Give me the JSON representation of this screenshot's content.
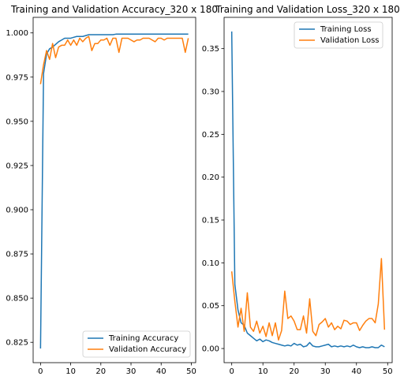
{
  "chart_data": [
    {
      "type": "line",
      "title": "Training and Validation Accuracy_320 x 180",
      "xlabel": "",
      "ylabel": "",
      "xlim": [
        -2.45,
        51.45
      ],
      "ylim": [
        0.8135,
        1.0088
      ],
      "xticks": [
        0,
        10,
        20,
        30,
        40,
        50
      ],
      "yticks": [
        0.825,
        0.85,
        0.875,
        0.9,
        0.925,
        0.95,
        0.975,
        1.0
      ],
      "ytick_labels": [
        "0.825",
        "0.850",
        "0.875",
        "0.900",
        "0.925",
        "0.950",
        "0.975",
        "1.000"
      ],
      "legend_position": "lower right",
      "grid": false,
      "x": [
        0,
        1,
        2,
        3,
        4,
        5,
        6,
        7,
        8,
        9,
        10,
        11,
        12,
        13,
        14,
        15,
        16,
        17,
        18,
        19,
        20,
        21,
        22,
        23,
        24,
        25,
        26,
        27,
        28,
        29,
        30,
        31,
        32,
        33,
        34,
        35,
        36,
        37,
        38,
        39,
        40,
        41,
        42,
        43,
        44,
        45,
        46,
        47,
        48,
        49
      ],
      "series": [
        {
          "name": "Training Accuracy",
          "color": "#1f77b4",
          "values": [
            0.8215,
            0.977,
            0.988,
            0.991,
            0.992,
            0.9935,
            0.995,
            0.996,
            0.997,
            0.997,
            0.997,
            0.9975,
            0.998,
            0.998,
            0.998,
            0.9985,
            0.999,
            0.999,
            0.999,
            0.999,
            0.999,
            0.999,
            0.999,
            0.999,
            0.999,
            0.9993,
            0.9993,
            0.9993,
            0.9993,
            0.9993,
            0.9993,
            0.9993,
            0.9993,
            0.9993,
            0.9993,
            0.9993,
            0.9993,
            0.9993,
            0.9993,
            0.9993,
            0.9993,
            0.9993,
            0.9993,
            0.9993,
            0.9993,
            0.9993,
            0.9993,
            0.9993,
            0.9993,
            0.9993
          ]
        },
        {
          "name": "Validation Accuracy",
          "color": "#ff7f0e",
          "values": [
            0.971,
            0.982,
            0.99,
            0.985,
            0.994,
            0.986,
            0.992,
            0.993,
            0.993,
            0.996,
            0.993,
            0.996,
            0.993,
            0.997,
            0.995,
            0.997,
            0.998,
            0.99,
            0.994,
            0.994,
            0.996,
            0.996,
            0.997,
            0.993,
            0.997,
            0.997,
            0.989,
            0.997,
            0.997,
            0.997,
            0.996,
            0.995,
            0.996,
            0.996,
            0.997,
            0.997,
            0.997,
            0.996,
            0.995,
            0.997,
            0.997,
            0.996,
            0.997,
            0.997,
            0.997,
            0.997,
            0.997,
            0.997,
            0.989,
            0.997
          ]
        }
      ]
    },
    {
      "type": "line",
      "title": "Training and Validation Loss_320 x 180",
      "xlabel": "",
      "ylabel": "",
      "xlim": [
        -2.45,
        51.45
      ],
      "ylim": [
        -0.0165,
        0.3865
      ],
      "xticks": [
        0,
        10,
        20,
        30,
        40,
        50
      ],
      "yticks": [
        0.0,
        0.05,
        0.1,
        0.15,
        0.2,
        0.25,
        0.3,
        0.35
      ],
      "ytick_labels": [
        "0.00",
        "0.05",
        "0.10",
        "0.15",
        "0.20",
        "0.25",
        "0.30",
        "0.35"
      ],
      "legend_position": "upper right",
      "grid": false,
      "x": [
        0,
        1,
        2,
        3,
        4,
        5,
        6,
        7,
        8,
        9,
        10,
        11,
        12,
        13,
        14,
        15,
        16,
        17,
        18,
        19,
        20,
        21,
        22,
        23,
        24,
        25,
        26,
        27,
        28,
        29,
        30,
        31,
        32,
        33,
        34,
        35,
        36,
        37,
        38,
        39,
        40,
        41,
        42,
        43,
        44,
        45,
        46,
        47,
        48,
        49
      ],
      "series": [
        {
          "name": "Training Loss",
          "color": "#1f77b4",
          "values": [
            0.37,
            0.075,
            0.045,
            0.03,
            0.027,
            0.018,
            0.015,
            0.012,
            0.009,
            0.011,
            0.008,
            0.01,
            0.009,
            0.007,
            0.006,
            0.005,
            0.004,
            0.003,
            0.004,
            0.003,
            0.006,
            0.004,
            0.005,
            0.002,
            0.003,
            0.007,
            0.003,
            0.002,
            0.002,
            0.003,
            0.004,
            0.005,
            0.002,
            0.003,
            0.002,
            0.003,
            0.002,
            0.003,
            0.002,
            0.004,
            0.002,
            0.001,
            0.002,
            0.001,
            0.001,
            0.002,
            0.001,
            0.001,
            0.004,
            0.002
          ]
        },
        {
          "name": "Validation Loss",
          "color": "#ff7f0e",
          "values": [
            0.09,
            0.055,
            0.025,
            0.047,
            0.02,
            0.065,
            0.025,
            0.02,
            0.032,
            0.018,
            0.026,
            0.014,
            0.03,
            0.015,
            0.03,
            0.01,
            0.021,
            0.067,
            0.035,
            0.038,
            0.032,
            0.022,
            0.022,
            0.038,
            0.018,
            0.058,
            0.02,
            0.015,
            0.028,
            0.031,
            0.035,
            0.025,
            0.03,
            0.022,
            0.026,
            0.023,
            0.033,
            0.032,
            0.028,
            0.03,
            0.03,
            0.021,
            0.027,
            0.032,
            0.035,
            0.035,
            0.03,
            0.052,
            0.105,
            0.022
          ]
        }
      ]
    }
  ]
}
